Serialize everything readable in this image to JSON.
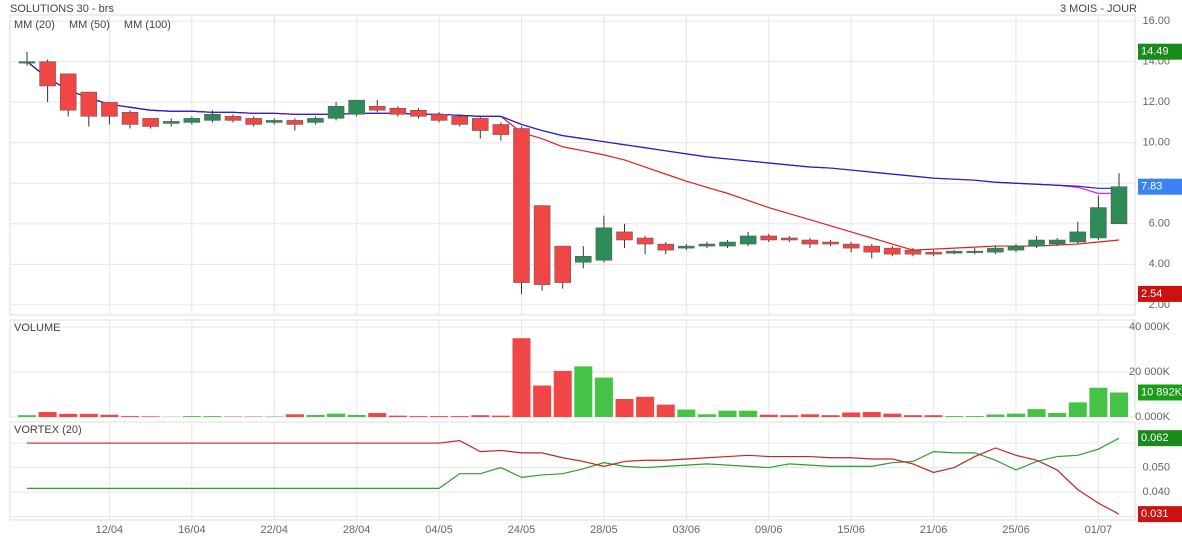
{
  "chart_data": [
    {
      "type": "candlestick",
      "title": "SOLUTIONS 30 - brs",
      "period": "3 MOIS - JOUR",
      "up_color": "#2e8b57",
      "down_color": "#f04646",
      "open": [
        14.0,
        14.0,
        13.4,
        12.5,
        12.0,
        11.5,
        11.2,
        10.95,
        11.0,
        11.1,
        11.3,
        11.2,
        11.0,
        11.1,
        11.0,
        11.2,
        11.4,
        11.8,
        11.7,
        11.6,
        11.4,
        11.3,
        11.2,
        10.9,
        10.7,
        6.9,
        4.9,
        4.1,
        4.2,
        5.6,
        5.3,
        5.0,
        4.8,
        4.9,
        4.9,
        5.0,
        5.4,
        5.3,
        5.2,
        5.1,
        5.0,
        4.9,
        4.8,
        4.7,
        4.6,
        4.55,
        4.6,
        4.6,
        4.7,
        4.9,
        5.0,
        5.1,
        5.3,
        6.0
      ],
      "high": [
        14.49,
        14.1,
        13.4,
        12.5,
        12.0,
        11.6,
        11.2,
        11.2,
        11.3,
        11.6,
        11.4,
        11.3,
        11.2,
        11.2,
        11.3,
        12.0,
        12.1,
        12.1,
        11.8,
        11.7,
        11.5,
        11.4,
        11.3,
        11.0,
        10.8,
        6.9,
        4.9,
        4.9,
        6.4,
        6.0,
        5.4,
        5.1,
        5.0,
        5.1,
        5.2,
        5.6,
        5.5,
        5.4,
        5.3,
        5.2,
        5.1,
        5.0,
        4.9,
        4.8,
        4.7,
        4.7,
        4.8,
        4.9,
        5.0,
        5.4,
        5.3,
        6.1,
        7.4,
        8.5
      ],
      "low": [
        13.8,
        12.0,
        11.3,
        10.8,
        10.9,
        10.7,
        10.7,
        10.8,
        10.9,
        11.0,
        11.0,
        10.8,
        10.9,
        10.6,
        10.9,
        11.1,
        11.3,
        11.5,
        11.3,
        11.2,
        11.0,
        10.8,
        10.2,
        10.1,
        2.54,
        2.7,
        2.8,
        3.8,
        4.1,
        4.8,
        4.5,
        4.5,
        4.7,
        4.8,
        4.8,
        4.9,
        5.1,
        5.1,
        4.8,
        4.9,
        4.6,
        4.3,
        4.4,
        4.4,
        4.4,
        4.5,
        4.5,
        4.5,
        4.6,
        4.8,
        4.9,
        5.0,
        5.2,
        6.0
      ],
      "close": [
        14.0,
        12.8,
        11.6,
        11.3,
        11.3,
        10.9,
        10.8,
        11.05,
        11.2,
        11.4,
        11.1,
        10.9,
        11.1,
        10.9,
        11.2,
        11.8,
        12.1,
        11.6,
        11.4,
        11.3,
        11.1,
        10.9,
        10.6,
        10.4,
        3.1,
        3.0,
        3.1,
        4.4,
        5.8,
        5.2,
        5.0,
        4.7,
        4.9,
        5.0,
        5.1,
        5.4,
        5.2,
        5.2,
        5.0,
        5.0,
        4.8,
        4.6,
        4.5,
        4.5,
        4.5,
        4.65,
        4.65,
        4.8,
        4.9,
        5.2,
        5.2,
        5.6,
        6.8,
        7.83
      ],
      "series": [
        {
          "name": "MM (20)",
          "color": "#e02020",
          "values": [
            14.0,
            13.2,
            12.6,
            12.2,
            11.9,
            11.75,
            11.6,
            11.55,
            11.55,
            11.5,
            11.5,
            11.45,
            11.45,
            11.4,
            11.4,
            11.4,
            11.45,
            11.45,
            11.45,
            11.4,
            11.4,
            11.35,
            11.3,
            11.3,
            10.5,
            10.2,
            9.8,
            9.6,
            9.4,
            9.15,
            8.8,
            8.45,
            8.1,
            7.8,
            7.5,
            7.15,
            6.8,
            6.5,
            6.2,
            5.9,
            5.6,
            5.3,
            5.0,
            4.7,
            4.75,
            4.8,
            4.85,
            4.9,
            4.9,
            4.9,
            4.95,
            5.0,
            5.1,
            5.2
          ]
        },
        {
          "name": "MM (50)",
          "color": "#e020e0",
          "values": [
            14.0,
            13.2,
            12.6,
            12.2,
            11.9,
            11.75,
            11.6,
            11.55,
            11.55,
            11.5,
            11.5,
            11.45,
            11.45,
            11.4,
            11.4,
            11.4,
            11.45,
            11.45,
            11.45,
            11.4,
            11.4,
            11.35,
            11.3,
            11.3,
            10.9,
            10.6,
            10.35,
            10.2,
            10.05,
            9.9,
            9.75,
            9.6,
            9.45,
            9.3,
            9.2,
            9.1,
            9.0,
            8.9,
            8.8,
            8.75,
            8.65,
            8.55,
            8.45,
            8.35,
            8.25,
            8.2,
            8.15,
            8.05,
            8.0,
            7.95,
            7.9,
            7.8,
            7.5,
            7.5
          ]
        },
        {
          "name": "MM (100)",
          "color": "#2020d0",
          "values": [
            14.0,
            13.2,
            12.6,
            12.2,
            11.9,
            11.75,
            11.6,
            11.55,
            11.55,
            11.5,
            11.5,
            11.45,
            11.45,
            11.4,
            11.4,
            11.4,
            11.45,
            11.45,
            11.45,
            11.4,
            11.4,
            11.35,
            11.3,
            11.3,
            10.9,
            10.6,
            10.35,
            10.2,
            10.05,
            9.9,
            9.75,
            9.6,
            9.45,
            9.3,
            9.2,
            9.1,
            9.0,
            8.9,
            8.8,
            8.75,
            8.65,
            8.55,
            8.45,
            8.35,
            8.25,
            8.2,
            8.15,
            8.05,
            8.0,
            7.95,
            7.9,
            7.85,
            7.75,
            7.75
          ]
        }
      ],
      "ylim": [
        1.5,
        16.3
      ],
      "yticks": [
        {
          "value": 2,
          "label": "2.00"
        },
        {
          "value": 4,
          "label": "4.00"
        },
        {
          "value": 6,
          "label": "6.00"
        },
        {
          "value": 8,
          "label": "8.00"
        },
        {
          "value": 10,
          "label": "10.00"
        },
        {
          "value": 12,
          "label": "12.00"
        },
        {
          "value": 14,
          "label": "14.00"
        },
        {
          "value": 16,
          "label": "16.00"
        }
      ],
      "badges": [
        {
          "value": 14.49,
          "color": "#1a8a1a"
        },
        {
          "value": 7.83,
          "color": "#3b82f6"
        },
        {
          "value": 2.54,
          "color": "#cc1111"
        }
      ],
      "grid": true
    },
    {
      "type": "bar",
      "title": "VOLUME",
      "title_color": "#2a9d2a",
      "up_color": "#44c344",
      "down_color": "#f04646",
      "values": [
        800,
        2200,
        1400,
        1400,
        1000,
        400,
        300,
        100,
        400,
        400,
        200,
        200,
        200,
        1200,
        900,
        1500,
        900,
        1800,
        600,
        400,
        400,
        400,
        800,
        600,
        35000,
        14000,
        20500,
        22500,
        17500,
        8000,
        9000,
        5500,
        3300,
        1200,
        2800,
        2800,
        1000,
        800,
        1200,
        800,
        2000,
        2200,
        1500,
        800,
        800,
        400,
        400,
        1100,
        1500,
        3500,
        1800,
        6500,
        13000,
        10892
      ],
      "ylim": [
        0,
        43100
      ],
      "yticks": [
        {
          "value": 0,
          "label": "0.000K"
        },
        {
          "value": 20000,
          "label": "20 000K"
        },
        {
          "value": 40000,
          "label": "40 000K"
        }
      ],
      "badges": [
        {
          "value": 10892,
          "label": "10 892K",
          "color": "#1a9e1a"
        }
      ],
      "grid": true
    },
    {
      "type": "line",
      "title": "VORTEX (20)",
      "categories": [
        null,
        null,
        null,
        null,
        "12/04",
        null,
        null,
        null,
        "16/04",
        null,
        null,
        null,
        "22/04",
        null,
        null,
        null,
        "28/04",
        null,
        null,
        null,
        "04/05",
        null,
        null,
        null,
        "24/05",
        null,
        null,
        null,
        "28/05",
        null,
        null,
        null,
        "03/06",
        null,
        null,
        null,
        "09/06",
        null,
        null,
        null,
        "15/06",
        null,
        null,
        null,
        "21/06",
        null,
        null,
        null,
        "25/06",
        null,
        null,
        null,
        "01/07",
        null
      ],
      "series": [
        {
          "color": "#2ca02c",
          "values": [
            0.0415,
            0.0415,
            0.0415,
            0.0415,
            0.0415,
            0.0415,
            0.0415,
            0.0415,
            0.0415,
            0.0415,
            0.0415,
            0.0415,
            0.0415,
            0.0415,
            0.0415,
            0.0415,
            0.0415,
            0.0415,
            0.0415,
            0.0415,
            0.0415,
            0.0475,
            0.0475,
            0.05,
            0.046,
            0.047,
            0.0475,
            0.0495,
            0.052,
            0.0505,
            0.05,
            0.0505,
            0.051,
            0.0515,
            0.051,
            0.0505,
            0.05,
            0.0515,
            0.051,
            0.0505,
            0.0505,
            0.0505,
            0.052,
            0.0525,
            0.0565,
            0.056,
            0.056,
            0.053,
            0.049,
            0.0525,
            0.0545,
            0.055,
            0.0575,
            0.062
          ]
        },
        {
          "color": "#c0281e",
          "values": [
            0.06,
            0.06,
            0.06,
            0.06,
            0.06,
            0.06,
            0.06,
            0.06,
            0.06,
            0.06,
            0.06,
            0.06,
            0.06,
            0.06,
            0.06,
            0.06,
            0.06,
            0.06,
            0.06,
            0.06,
            0.06,
            0.061,
            0.0565,
            0.057,
            0.056,
            0.056,
            0.054,
            0.0525,
            0.0505,
            0.0525,
            0.053,
            0.053,
            0.0535,
            0.054,
            0.0545,
            0.055,
            0.0545,
            0.0545,
            0.0545,
            0.054,
            0.054,
            0.0535,
            0.0535,
            0.0515,
            0.048,
            0.05,
            0.0545,
            0.058,
            0.055,
            0.053,
            0.049,
            0.041,
            0.0355,
            0.031
          ]
        }
      ],
      "ylim": [
        0.0286,
        0.0686
      ],
      "yticks": [
        {
          "value": 0.03,
          "label": "0.030"
        },
        {
          "value": 0.04,
          "label": "0.040"
        },
        {
          "value": 0.05,
          "label": "0.050"
        },
        {
          "value": 0.06,
          "label": "0.060"
        }
      ],
      "badges": [
        {
          "value": 0.062,
          "color": "#1a8a1a"
        },
        {
          "value": 0.031,
          "color": "#cc1111"
        }
      ],
      "grid": true
    }
  ]
}
